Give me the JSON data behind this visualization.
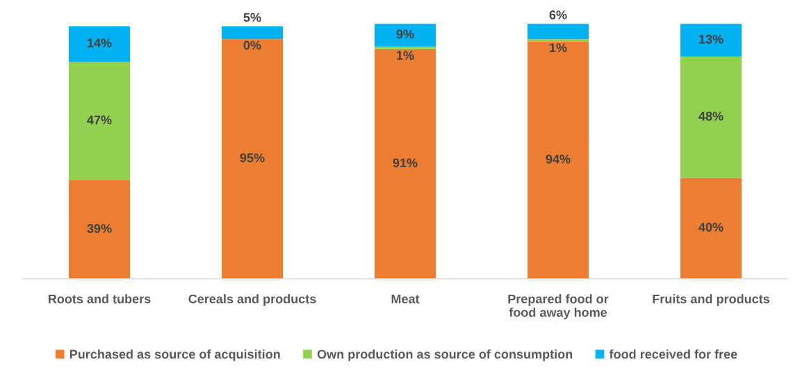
{
  "chart_data": {
    "type": "bar",
    "stacked": true,
    "categories": [
      "Roots and tubers",
      "Cereals and products",
      "Meat",
      "Prepared food or food away home",
      "Fruits and products"
    ],
    "series": [
      {
        "name": "Purchased as source of acquisition",
        "color": "#ed7d31",
        "values": [
          39,
          95,
          91,
          94,
          40
        ],
        "value_labels": [
          "39%",
          "95%",
          "91%",
          "94%",
          "40%"
        ]
      },
      {
        "name": "Own production as source of consumption",
        "color": "#92d050",
        "values": [
          47,
          0,
          1,
          1,
          48
        ],
        "value_labels": [
          "47%",
          "0%",
          "1%",
          "1%",
          "48%"
        ]
      },
      {
        "name": "food received for free",
        "color": "#00b0f0",
        "values": [
          14,
          5,
          9,
          6,
          13
        ],
        "value_labels": [
          "14%",
          "5%",
          "9%",
          "6%",
          "13%"
        ]
      }
    ],
    "legend": "bottom",
    "tick_labels": "x"
  }
}
